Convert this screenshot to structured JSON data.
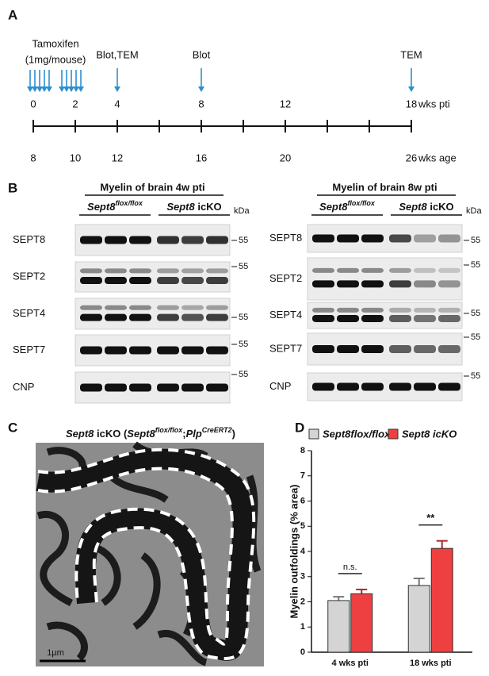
{
  "panel_a": {
    "label": "A",
    "tamoxifen": "Tamoxifen",
    "dose": "(1mg/mouse)",
    "range": [
      0,
      18
    ],
    "ticks": [
      0,
      2,
      4,
      6,
      8,
      10,
      12,
      14,
      16,
      18
    ],
    "pti": [
      0,
      2,
      4,
      8,
      12,
      18
    ],
    "pti_unit": "wks pti",
    "age": [
      8,
      10,
      12,
      16,
      20,
      26
    ],
    "age_unit": "wks age",
    "events": [
      {
        "label": "Blot,TEM",
        "at": 4
      },
      {
        "label": "Blot",
        "at": 8
      },
      {
        "label": "TEM",
        "at": 18
      }
    ]
  },
  "panel_b": {
    "label": "B",
    "kda": "kDa",
    "control": [
      {
        "t": "Sept8",
        "it": true
      },
      {
        "t": "flox/flox",
        "it": true,
        "sup": true
      }
    ],
    "mutant": [
      {
        "t": "Sept8",
        "it": true
      },
      {
        "t": " icKO"
      }
    ],
    "blots": [
      {
        "title": "Myelin of brain 4w pti",
        "rows": [
          {
            "name": "SEPT8",
            "marker": "55"
          },
          {
            "name": "SEPT2",
            "marker": "55"
          },
          {
            "name": "SEPT4",
            "marker": "55"
          },
          {
            "name": "SEPT7",
            "marker": "55"
          },
          {
            "name": "CNP",
            "marker": "55"
          }
        ]
      },
      {
        "title": "Myelin of brain 8w pti",
        "rows": [
          {
            "name": "SEPT8",
            "marker": "55"
          },
          {
            "name": "SEPT2",
            "marker": "55"
          },
          {
            "name": "SEPT4",
            "marker": "55"
          },
          {
            "name": "SEPT7",
            "marker": "55"
          },
          {
            "name": "CNP",
            "marker": "55"
          }
        ]
      }
    ]
  },
  "panel_c": {
    "label": "C",
    "title": [
      {
        "t": "Sept8",
        "it": true
      },
      {
        "t": " icKO ("
      },
      {
        "t": "Sept8",
        "it": true
      },
      {
        "t": "flox/flox",
        "it": true,
        "sup": true
      },
      {
        "t": ";"
      },
      {
        "t": "Plp",
        "it": true
      },
      {
        "t": "CreERT2",
        "it": true,
        "sup": true
      },
      {
        "t": ")"
      }
    ],
    "scale_bar": "1µm"
  },
  "panel_d": {
    "label": "D"
  },
  "chart_data": {
    "type": "bar",
    "y_label": "Myelin outfoldings (% area)",
    "categories": [
      "4 wks pti",
      "18 wks pti"
    ],
    "series": [
      {
        "name": "Sept8flox/flox",
        "color": "#d4d4d4",
        "values": [
          2.05,
          2.65
        ],
        "errors": [
          0.15,
          0.28
        ]
      },
      {
        "name": "Sept8 icKO",
        "color": "#ee4040",
        "values": [
          2.32,
          4.12
        ],
        "errors": [
          0.17,
          0.3
        ]
      }
    ],
    "annotations": [
      "n.s.",
      "**"
    ],
    "ylim": [
      0,
      8
    ],
    "yticks": [
      0,
      1,
      2,
      3,
      4,
      5,
      6,
      7,
      8
    ]
  }
}
